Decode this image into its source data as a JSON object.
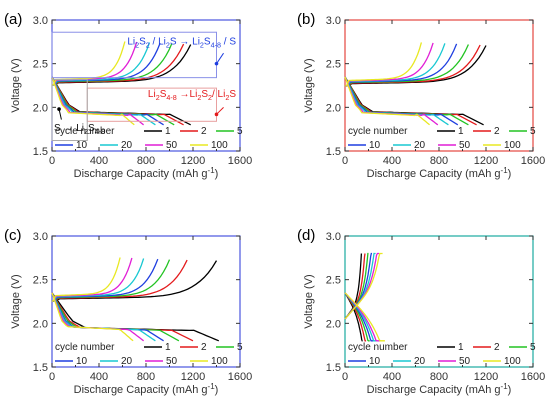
{
  "figure": {
    "panels": [
      "(a)",
      "(b)",
      "(c)",
      "(d)"
    ]
  },
  "axes": {
    "xlabel": "Discharge Capacity (mAh g",
    "xlabel_sup": "-1",
    "xlabel_close": ")",
    "ylabel": "Voltage (V)"
  },
  "legend": {
    "title": "cycle number",
    "entries": [
      {
        "label": "1",
        "color": "#000000"
      },
      {
        "label": "2",
        "color": "#e41a1c"
      },
      {
        "label": "5",
        "color": "#22c322"
      },
      {
        "label": "10",
        "color": "#1f3fe0"
      },
      {
        "label": "20",
        "color": "#19c8d2"
      },
      {
        "label": "50",
        "color": "#e11fd6"
      },
      {
        "label": "100",
        "color": "#e8e822"
      }
    ]
  },
  "annotations": {
    "blue": [
      "Li",
      "2",
      "S",
      "2",
      " / Li",
      "2",
      "S → Li",
      "2",
      "S",
      "4-8",
      " / S"
    ],
    "red": [
      "Li",
      "2",
      "S",
      "4-8",
      " →Li",
      "2",
      "S",
      "2",
      "/ Li",
      "2",
      "S"
    ],
    "black": [
      "S → Li",
      "2",
      "S",
      "4-8"
    ]
  },
  "chart_data": [
    {
      "panel": "(a)",
      "type": "line",
      "frame_color": "#4a55e0",
      "xlim": [
        0,
        1600
      ],
      "ylim": [
        1.5,
        3.0
      ],
      "xticks": [
        0,
        400,
        800,
        1200,
        1600
      ],
      "yticks": [
        1.5,
        2.0,
        2.5,
        3.0
      ],
      "xlabel": "Discharge Capacity (mAh g-1)",
      "ylabel": "Voltage (V)",
      "series": [
        {
          "name": "1",
          "color": "#000000",
          "charge_capacity": 1180,
          "discharge_capacity": 1180
        },
        {
          "name": "2",
          "color": "#e41a1c",
          "charge_capacity": 1120,
          "discharge_capacity": 1120
        },
        {
          "name": "5",
          "color": "#22c322",
          "charge_capacity": 1020,
          "discharge_capacity": 1040
        },
        {
          "name": "10",
          "color": "#1f3fe0",
          "charge_capacity": 920,
          "discharge_capacity": 950
        },
        {
          "name": "20",
          "color": "#19c8d2",
          "charge_capacity": 830,
          "discharge_capacity": 880
        },
        {
          "name": "50",
          "color": "#e11fd6",
          "charge_capacity": 720,
          "discharge_capacity": 780
        },
        {
          "name": "100",
          "color": "#e8e822",
          "charge_capacity": 620,
          "discharge_capacity": 700
        }
      ]
    },
    {
      "panel": "(b)",
      "type": "line",
      "frame_color": "#e4473f",
      "xlim": [
        0,
        1600
      ],
      "ylim": [
        1.5,
        3.0
      ],
      "xticks": [
        0,
        400,
        800,
        1200,
        1600
      ],
      "yticks": [
        1.5,
        2.0,
        2.5,
        3.0
      ],
      "xlabel": "Discharge Capacity (mAh g-1)",
      "ylabel": "Voltage (V)",
      "series": [
        {
          "name": "1",
          "color": "#000000",
          "charge_capacity": 1200,
          "discharge_capacity": 1180
        },
        {
          "name": "2",
          "color": "#e41a1c",
          "charge_capacity": 1150,
          "discharge_capacity": 1120
        },
        {
          "name": "5",
          "color": "#22c322",
          "charge_capacity": 1050,
          "discharge_capacity": 1050
        },
        {
          "name": "10",
          "color": "#1f3fe0",
          "charge_capacity": 950,
          "discharge_capacity": 960
        },
        {
          "name": "20",
          "color": "#19c8d2",
          "charge_capacity": 850,
          "discharge_capacity": 880
        },
        {
          "name": "50",
          "color": "#e11fd6",
          "charge_capacity": 750,
          "discharge_capacity": 790
        },
        {
          "name": "100",
          "color": "#e8e822",
          "charge_capacity": 650,
          "discharge_capacity": 720
        }
      ]
    },
    {
      "panel": "(c)",
      "type": "line",
      "frame_color": "#4a55e0",
      "xlim": [
        0,
        1600
      ],
      "ylim": [
        1.5,
        3.0
      ],
      "xticks": [
        0,
        400,
        800,
        1200,
        1600
      ],
      "yticks": [
        1.5,
        2.0,
        2.5,
        3.0
      ],
      "xlabel": "Discharge Capacity (mAh g-1)",
      "ylabel": "Voltage (V)",
      "series": [
        {
          "name": "1",
          "color": "#000000",
          "charge_capacity": 1400,
          "discharge_capacity": 1420
        },
        {
          "name": "2",
          "color": "#e41a1c",
          "charge_capacity": 1150,
          "discharge_capacity": 1200
        },
        {
          "name": "5",
          "color": "#22c322",
          "charge_capacity": 1000,
          "discharge_capacity": 1080
        },
        {
          "name": "10",
          "color": "#1f3fe0",
          "charge_capacity": 900,
          "discharge_capacity": 950
        },
        {
          "name": "20",
          "color": "#19c8d2",
          "charge_capacity": 780,
          "discharge_capacity": 880
        },
        {
          "name": "50",
          "color": "#e11fd6",
          "charge_capacity": 680,
          "discharge_capacity": 780
        },
        {
          "name": "100",
          "color": "#e8e822",
          "charge_capacity": 580,
          "discharge_capacity": 690
        }
      ]
    },
    {
      "panel": "(d)",
      "type": "line",
      "frame_color": "#1aaaa0",
      "xlim": [
        0,
        1600
      ],
      "ylim": [
        1.5,
        3.0
      ],
      "xticks": [
        0,
        400,
        800,
        1200,
        1600
      ],
      "yticks": [
        1.5,
        2.0,
        2.5,
        3.0
      ],
      "xlabel": "Discharge Capacity (mAh g-1)",
      "ylabel": "Voltage (V)",
      "series": [
        {
          "name": "1",
          "color": "#000000",
          "charge_capacity": 140,
          "discharge_capacity": 150
        },
        {
          "name": "2",
          "color": "#e41a1c",
          "charge_capacity": 170,
          "discharge_capacity": 180
        },
        {
          "name": "5",
          "color": "#22c322",
          "charge_capacity": 200,
          "discharge_capacity": 210
        },
        {
          "name": "10",
          "color": "#1f3fe0",
          "charge_capacity": 230,
          "discharge_capacity": 240
        },
        {
          "name": "20",
          "color": "#19c8d2",
          "charge_capacity": 260,
          "discharge_capacity": 270
        },
        {
          "name": "50",
          "color": "#e11fd6",
          "charge_capacity": 290,
          "discharge_capacity": 300
        },
        {
          "name": "100",
          "color": "#e8e822",
          "charge_capacity": 320,
          "discharge_capacity": 340
        }
      ]
    }
  ]
}
